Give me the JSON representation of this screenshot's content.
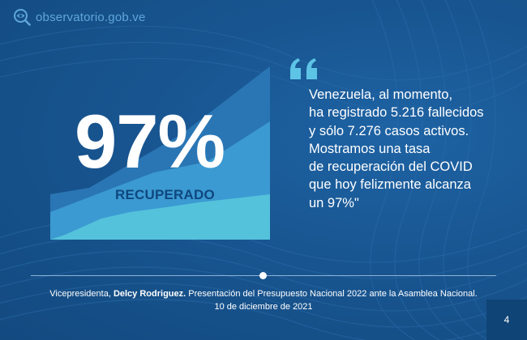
{
  "logo": {
    "text": "observatorio.gob.ve",
    "icon": "eye-magnifier-icon"
  },
  "headline": {
    "percent": "97%",
    "label": "RECUPERADO"
  },
  "quote": {
    "mark": "quote-mark-icon",
    "text": "Venezuela, al momento,\nha registrado 5.216 fallecidos\ny sólo 7.276 casos activos.\nMostramos una tasa\nde recuperación del COVID\nque hoy felizmente alcanza\nun 97%\""
  },
  "caption": {
    "prefix": "Vicepresidenta, ",
    "name": "Delcy Rodriguez.",
    "suffix": " Presentación del Presupuesto Nacional 2022 ante la Asamblea Nacional.",
    "date": "10 de diciembre de 2021"
  },
  "page_number": "4",
  "colors": {
    "background": "#185590",
    "area_dark": "#2a76b4",
    "area_mid": "#3b9ad1",
    "area_light": "#55c2dc",
    "accent_text": "#0f4780",
    "logo_text": "#5fa6dc"
  }
}
